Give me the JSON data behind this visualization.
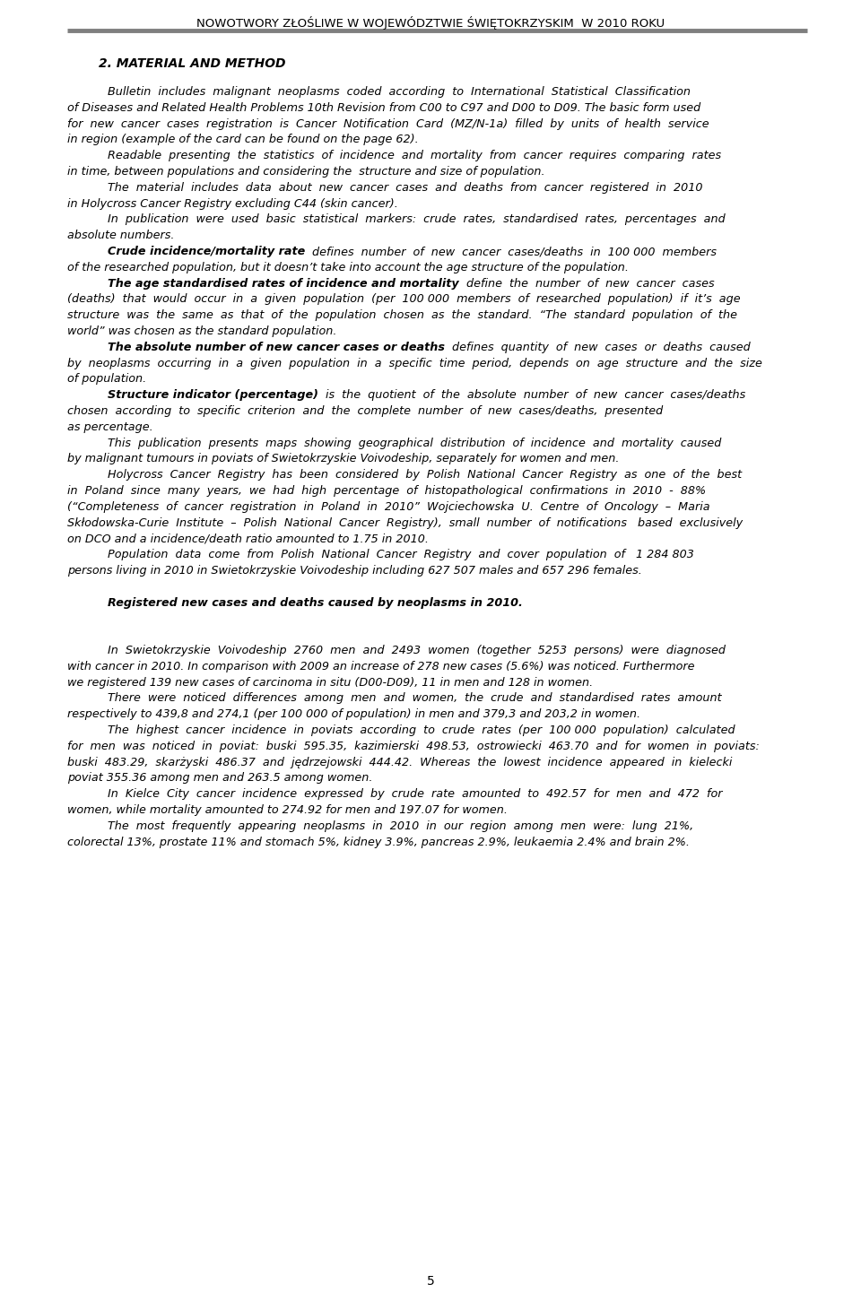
{
  "header_title": "NOWOTWORY ZŁOŚLIWE W WOJEWÓDZTWIE ŚWIĘTOKRZYSKIM  W 2010 ROKU",
  "section_title": "2. MATERIAL AND METHOD",
  "paragraphs": [
    {
      "indent": true,
      "lines": [
        [
          {
            "text": "Bulletin  includes  malignant  neoplasms  coded  according  to  International  Statistical  Classification",
            "bold": false
          }
        ],
        [
          {
            "text": "of Diseases and Related Health Problems 10th Revision from C00 to C97 and D00 to D09. The basic form used",
            "bold": false
          }
        ],
        [
          {
            "text": "for  new  cancer  cases  registration  is  Cancer  Notification  Card  (MZ/N-1a)  filled  by  units  of  health  service",
            "bold": false
          }
        ],
        [
          {
            "text": "in region (example of the card can be found on the page 62).",
            "bold": false
          }
        ]
      ]
    },
    {
      "indent": true,
      "lines": [
        [
          {
            "text": "Readable  presenting  the  statistics  of  incidence  and  mortality  from  cancer  requires  comparing  rates",
            "bold": false
          }
        ],
        [
          {
            "text": "in time, between populations and considering the  structure and size of population.",
            "bold": false
          }
        ]
      ]
    },
    {
      "indent": true,
      "lines": [
        [
          {
            "text": "The  material  includes  data  about  new  cancer  cases  and  deaths  from  cancer  registered  in  2010",
            "bold": false
          }
        ],
        [
          {
            "text": "in Holycross Cancer Registry excluding C44 (skin cancer).",
            "bold": false
          }
        ]
      ]
    },
    {
      "indent": true,
      "lines": [
        [
          {
            "text": "In  publication  were  used  basic  statistical  markers:  crude  rates,  standardised  rates,  percentages  and",
            "bold": false
          }
        ],
        [
          {
            "text": "absolute numbers.",
            "bold": false
          }
        ]
      ]
    },
    {
      "indent": true,
      "lines": [
        [
          {
            "text": "Crude incidence/mortality rate",
            "bold": true
          },
          {
            "text": "  defines  number  of  new  cancer  cases/deaths  in  100 000  members",
            "bold": false
          }
        ],
        [
          {
            "text": "of the researched population, but it doesn’t take into account the age structure of the population.",
            "bold": false
          }
        ]
      ]
    },
    {
      "indent": true,
      "lines": [
        [
          {
            "text": "The age standardised rates of incidence and mortality",
            "bold": true
          },
          {
            "text": "  define  the  number  of  new  cancer  cases",
            "bold": false
          }
        ],
        [
          {
            "text": "(deaths)  that  would  occur  in  a  given  population  (per  100 000  members  of  researched  population)  if  it’s  age",
            "bold": false
          }
        ],
        [
          {
            "text": "structure  was  the  same  as  that  of  the  population  chosen  as  the  standard.  “The  standard  population  of  the",
            "bold": false
          }
        ],
        [
          {
            "text": "world” was chosen as the standard population.",
            "bold": false
          }
        ]
      ]
    },
    {
      "indent": true,
      "lines": [
        [
          {
            "text": "The absolute number of new cancer cases or deaths",
            "bold": true
          },
          {
            "text": "  defines  quantity  of  new  cases  or  deaths  caused",
            "bold": false
          }
        ],
        [
          {
            "text": "by  neoplasms  occurring  in  a  given  population  in  a  specific  time  period,  depends  on  age  structure  and  the  size",
            "bold": false
          }
        ],
        [
          {
            "text": "of population.",
            "bold": false
          }
        ]
      ]
    },
    {
      "indent": true,
      "lines": [
        [
          {
            "text": "Structure indicator (percentage)",
            "bold": true
          },
          {
            "text": "  is  the  quotient  of  the  absolute  number  of  new  cancer  cases/deaths",
            "bold": false
          }
        ],
        [
          {
            "text": "chosen  according  to  specific  criterion  and  the  complete  number  of  new  cases/deaths,  presented",
            "bold": false
          }
        ],
        [
          {
            "text": "as percentage.",
            "bold": false
          }
        ]
      ]
    },
    {
      "indent": true,
      "lines": [
        [
          {
            "text": "This  publication  presents  maps  showing  geographical  distribution  of  incidence  and  mortality  caused",
            "bold": false
          }
        ],
        [
          {
            "text": "by malignant tumours in poviats of Swietokrzyskie Voivodeship, separately for women and men.",
            "bold": false
          }
        ]
      ]
    },
    {
      "indent": true,
      "lines": [
        [
          {
            "text": "Holycross  Cancer  Registry  has  been  considered  by  Polish  National  Cancer  Registry  as  one  of  the  best",
            "bold": false
          }
        ],
        [
          {
            "text": "in  Poland  since  many  years,  we  had  high  percentage  of  histopathological  confirmations  in  2010  -  88%",
            "bold": false
          }
        ],
        [
          {
            "text": "(“Completeness  of  cancer  registration  in  Poland  in  2010”  Wojciechowska  U.  Centre  of  Oncology  –  Maria",
            "bold": false
          }
        ],
        [
          {
            "text": "Skłodowska-Curie  Institute  –  Polish  National  Cancer  Registry),  small  number  of  notifications   based  exclusively",
            "bold": false
          }
        ],
        [
          {
            "text": "on DCO and a incidence/death ratio amounted to 1.75 in 2010.",
            "bold": false
          }
        ]
      ]
    },
    {
      "indent": true,
      "lines": [
        [
          {
            "text": "Population  data  come  from  Polish  National  Cancer  Registry  and  cover  population  of   1 284 803",
            "bold": false
          }
        ],
        [
          {
            "text": "persons living in 2010 in Swietokrzyskie Voivodeship including 627 507 males and 657 296 females.",
            "bold": false
          }
        ]
      ]
    },
    {
      "indent": false,
      "lines": [
        [
          {
            "text": "",
            "bold": false
          }
        ]
      ]
    },
    {
      "indent": true,
      "bold_line": true,
      "lines": [
        [
          {
            "text": "Registered new cases and deaths caused by neoplasms in 2010.",
            "bold": true
          }
        ]
      ]
    },
    {
      "indent": false,
      "lines": [
        [
          {
            "text": "",
            "bold": false
          }
        ]
      ]
    },
    {
      "indent": false,
      "lines": [
        [
          {
            "text": "",
            "bold": false
          }
        ]
      ]
    },
    {
      "indent": true,
      "lines": [
        [
          {
            "text": "In  Swietokrzyskie  Voivodeship  2760  men  and  2493  women  (together  5253  persons)  were  diagnosed",
            "bold": false
          }
        ],
        [
          {
            "text": "with cancer in 2010. In comparison with 2009 an increase of 278 new cases (5.6%) was noticed. Furthermore",
            "bold": false
          }
        ],
        [
          {
            "text": "we registered 139 new cases of carcinoma in situ (D00-D09), 11 in men and 128 in women.",
            "bold": false
          }
        ]
      ]
    },
    {
      "indent": true,
      "lines": [
        [
          {
            "text": "There  were  noticed  differences  among  men  and  women,  the  crude  and  standardised  rates  amount",
            "bold": false
          }
        ],
        [
          {
            "text": "respectively to 439,8 and 274,1 (per 100 000 of population) in men and 379,3 and 203,2 in women.",
            "bold": false
          }
        ]
      ]
    },
    {
      "indent": true,
      "lines": [
        [
          {
            "text": "The  highest  cancer  incidence  in  poviats  according  to  crude  rates  (per  100 000  population)  calculated",
            "bold": false
          }
        ],
        [
          {
            "text": "for  men  was  noticed  in  poviat:  buski  595.35,  kazimierski  498.53,  ostrowiecki  463.70  and  for  women  in  poviats:",
            "bold": false
          }
        ],
        [
          {
            "text": "buski  483.29,  skarżyski  486.37  and  jędrzejowski  444.42.  Whereas  the  lowest  incidence  appeared  in  kielecki",
            "bold": false
          }
        ],
        [
          {
            "text": "poviat 355.36 among men and 263.5 among women.",
            "bold": false
          }
        ]
      ]
    },
    {
      "indent": true,
      "lines": [
        [
          {
            "text": "In  Kielce  City  cancer  incidence  expressed  by  crude  rate  amounted  to  492.57  for  men  and  472  for",
            "bold": false
          }
        ],
        [
          {
            "text": "women, while mortality amounted to 274.92 for men and 197.07 for women.",
            "bold": false
          }
        ]
      ]
    },
    {
      "indent": true,
      "lines": [
        [
          {
            "text": "The  most  frequently  appearing  neoplasms  in  2010  in  our  region  among  men  were:  lung  21%,",
            "bold": false
          }
        ],
        [
          {
            "text": "colorectal 13%, prostate 11% and stomach 5%, kidney 3.9%, pancreas 2.9%, leukaemia 2.4% and brain 2%.",
            "bold": false
          }
        ]
      ]
    }
  ],
  "page_number": "5",
  "bg_color": "#ffffff",
  "text_color": "#000000",
  "header_line_color": "#7f7f7f"
}
